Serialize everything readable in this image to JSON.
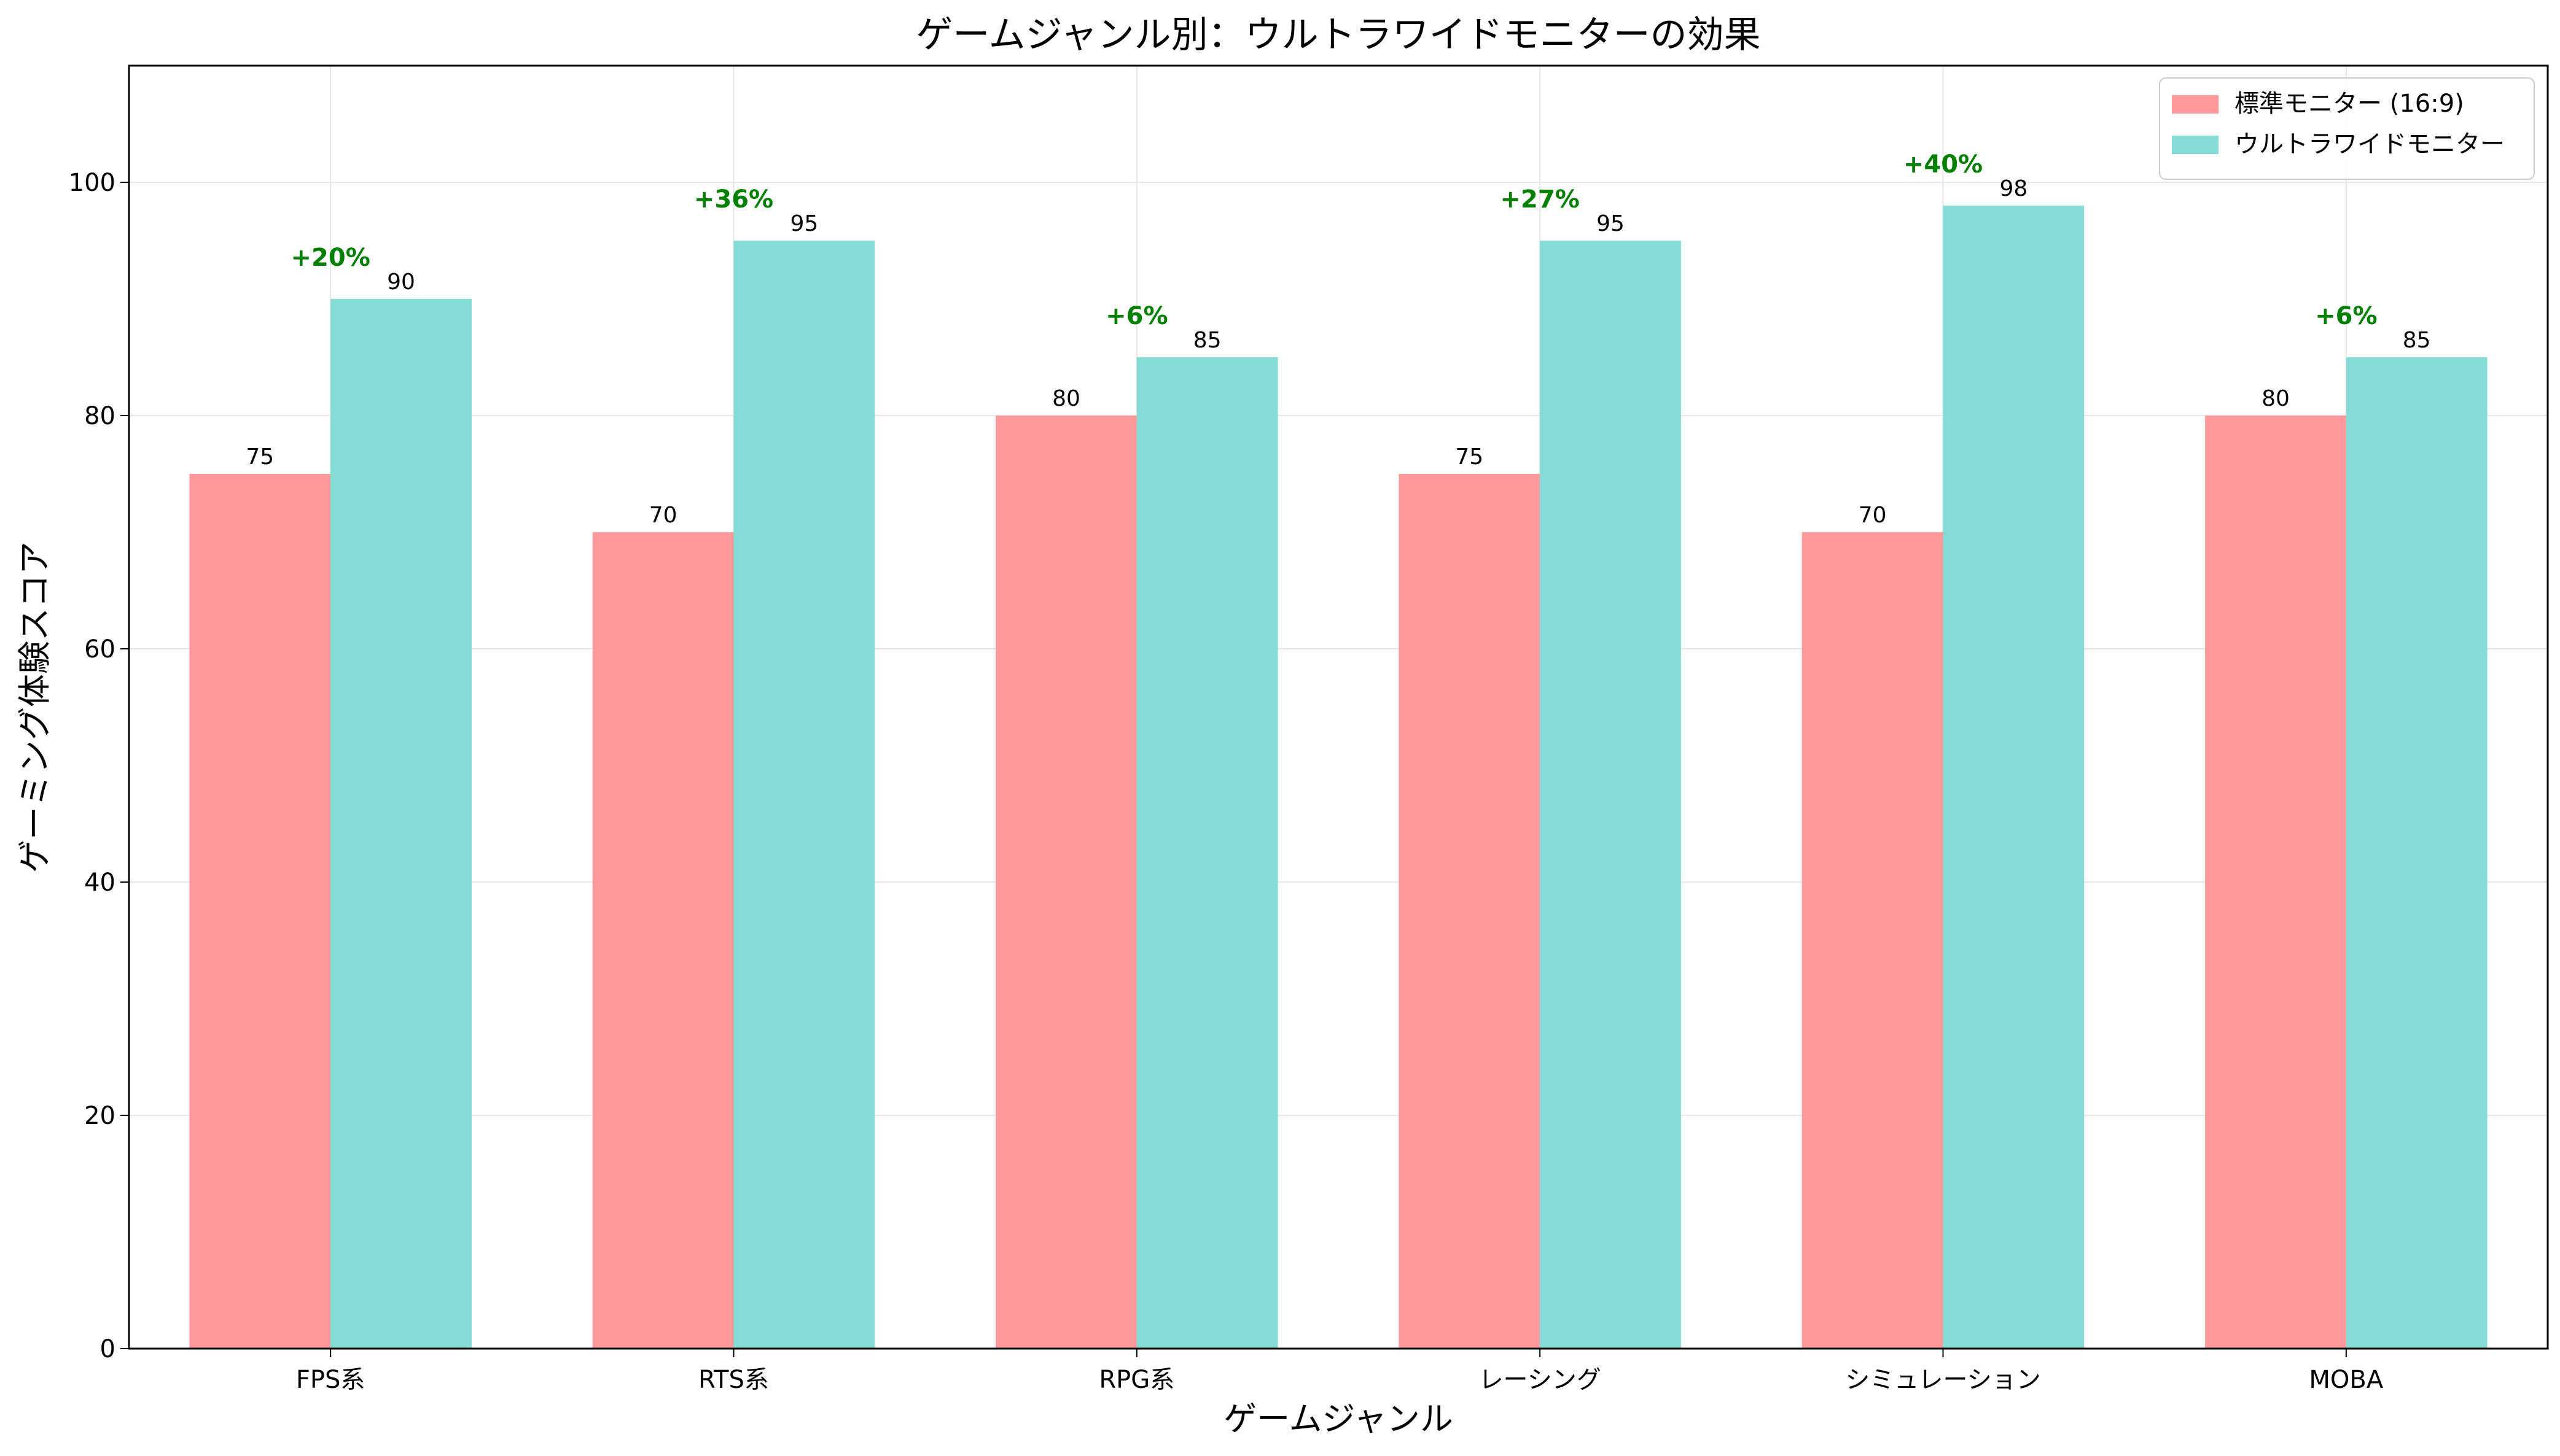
{
  "chart_data": {
    "type": "bar",
    "title": "ゲームジャンル別：ウルトラワイドモニターの効果",
    "xlabel": "ゲームジャンル",
    "ylabel": "ゲーミング体験スコア",
    "categories": [
      "FPS系",
      "RTS系",
      "RPG系",
      "レーシング",
      "シミュレーション",
      "MOBA"
    ],
    "series": [
      {
        "name": "標準モニター (16:9)",
        "values": [
          75,
          70,
          80,
          75,
          70,
          80
        ],
        "color": "#ff9999"
      },
      {
        "name": "ウルトラワイドモニター",
        "values": [
          90,
          95,
          85,
          95,
          98,
          85
        ],
        "color": "#85dbd5"
      }
    ],
    "improvement_labels": [
      "+20%",
      "+36%",
      "+6%",
      "+27%",
      "+40%",
      "+6%"
    ],
    "improvement_color": "#008000",
    "ylim": [
      0,
      110
    ],
    "yticks": [
      0,
      20,
      40,
      60,
      80,
      100
    ],
    "grid": true,
    "legend_position": "top-right"
  }
}
